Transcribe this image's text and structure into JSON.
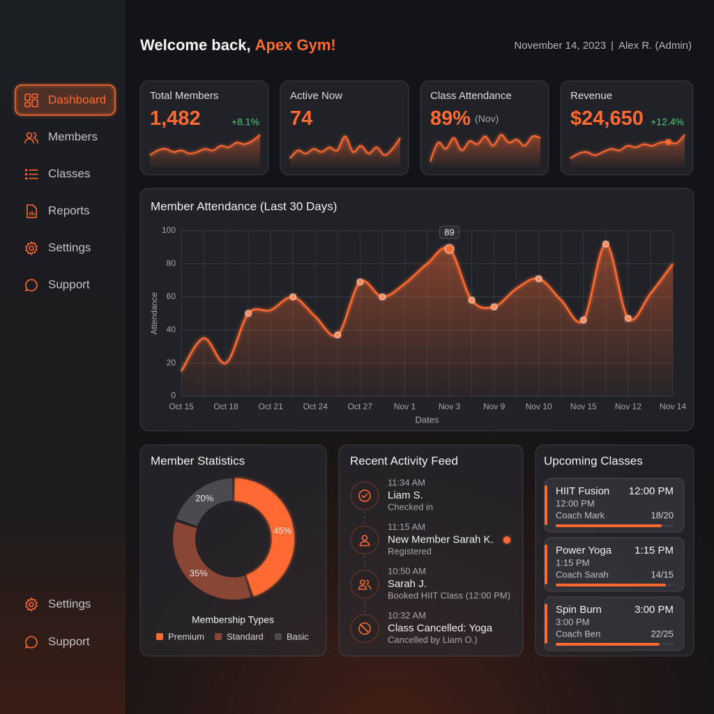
{
  "header": {
    "greeting": "Welcome back,",
    "gym_name": "Apex Gym!",
    "date": "November 14, 2023",
    "separator": "|",
    "user": "Alex R. (Admin)"
  },
  "sidebar": {
    "nav": [
      "Dashboard",
      "Members",
      "Classes",
      "Reports",
      "Settings",
      "Support"
    ],
    "footer": [
      "Settings",
      "Support"
    ]
  },
  "kpis": [
    {
      "title": "Total Members",
      "value": "1,482",
      "change": "+8.1%"
    },
    {
      "title": "Active Now",
      "value": "74"
    },
    {
      "title": "Class Attendance",
      "value": "89%",
      "note": "(Nov)"
    },
    {
      "title": "Revenue",
      "value": "$24,650",
      "change": "+12.4%"
    }
  ],
  "chart_data": [
    {
      "type": "line",
      "title": "Member Attendance (Last 30 Days)",
      "x_label": "Dates",
      "y_label": "Attendance",
      "categories": [
        "Oct 15",
        null,
        "Oct 18",
        null,
        "Oct 21",
        null,
        "Oct 24",
        null,
        "Oct 27",
        null,
        "Nov 1",
        null,
        "Nov 3",
        null,
        "Nov 9",
        null,
        "Nov 10",
        null,
        "Nov 15",
        null,
        "Nov 12",
        null,
        "Nov 14"
      ],
      "values": [
        15,
        35,
        20,
        50,
        52,
        60,
        48,
        37,
        69,
        60,
        68,
        80,
        89,
        58,
        54,
        65,
        71,
        58,
        46,
        92,
        47,
        62,
        80
      ],
      "color": "#ff6a33",
      "ylim": [
        0,
        100
      ],
      "yticks": [
        0,
        20,
        40,
        60,
        80,
        100
      ],
      "grid": true
    },
    {
      "type": "donut",
      "title": "Member Statistics",
      "subtitle": "Membership Types",
      "categories": [
        "Premium",
        "Standard",
        "Basic"
      ],
      "values": [
        45,
        35,
        20
      ],
      "value_labels": [
        "45%",
        "35%",
        "20%"
      ],
      "colors": [
        "#ff6a33",
        "#8a4634",
        "#4a4a4f"
      ]
    }
  ],
  "activity": {
    "title": "Recent Activity Feed",
    "items": [
      {
        "time": "11:34 AM",
        "name": "Liam S.",
        "detail": "Checked in"
      },
      {
        "time": "11:15 AM",
        "name": "New Member Sarah K.",
        "detail": "Registered"
      },
      {
        "time": "10:50 AM",
        "name": "Sarah J.",
        "detail": "Booked HIIT Class (12:00 PM)"
      },
      {
        "time": "10:32 AM",
        "name": "Class Cancelled: Yoga",
        "detail": "Cancelled by Liam O.)"
      }
    ]
  },
  "classes": {
    "title": "Upcoming Classes",
    "items": [
      {
        "name": "HIIT Fusion",
        "start": "12:00 PM",
        "time": "12:00 PM",
        "coach": "Coach Mark",
        "count": "18/20"
      },
      {
        "name": "Power Yoga",
        "start": "1:15 PM",
        "time": "1:15 PM",
        "coach": "Coach Sarah",
        "count": "14/15"
      },
      {
        "name": "Spin Burn",
        "start": "3:00 PM",
        "time": "3:00 PM",
        "coach": "Coach Ben",
        "count": "22/25"
      }
    ]
  }
}
